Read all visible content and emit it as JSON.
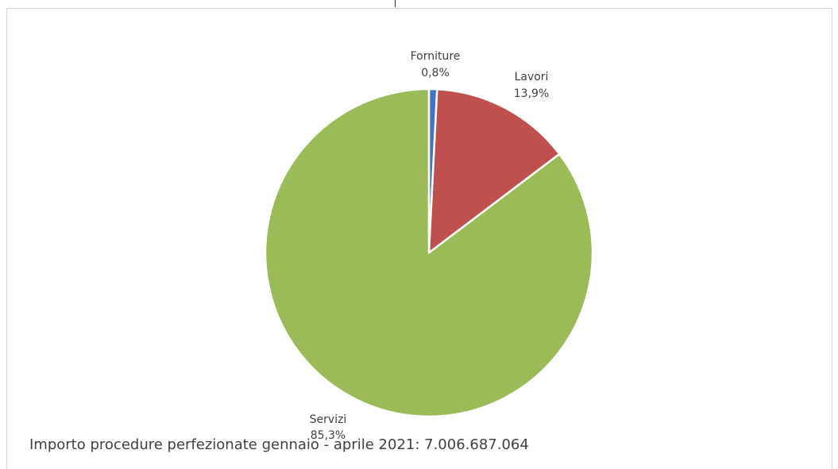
{
  "chart_data": {
    "type": "pie",
    "slices": [
      {
        "label": "Forniture",
        "value": 0.8,
        "value_label": "0,8%",
        "color": "#4472c4"
      },
      {
        "label": "Lavori",
        "value": 13.9,
        "value_label": "13,9%",
        "color": "#c0504d"
      },
      {
        "label": "Servizi",
        "value": 85.3,
        "value_label": "85,3%",
        "color": "#9bbb59"
      }
    ],
    "start_angle_deg": 0,
    "direction": "clockwise",
    "legend": "none",
    "caption": "Importo procedure perfezionate gennaio - aprile 2021: 7.006.687.064"
  }
}
